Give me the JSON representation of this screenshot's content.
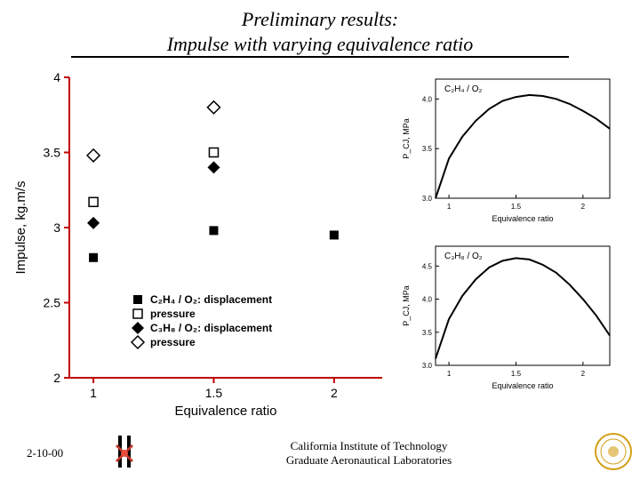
{
  "title_line1": "Preliminary results:",
  "title_line2": "Impulse with varying equivalence ratio",
  "footer": {
    "date": "2-10-00",
    "inst_line1": "California Institute of Technology",
    "inst_line2": "Graduate Aeronautical Laboratories"
  },
  "main_chart": {
    "type": "scatter",
    "xlabel": "Equivalence ratio",
    "ylabel": "Impulse, kg.m/s",
    "xlim": [
      0.9,
      2.2
    ],
    "ylim": [
      2,
      4
    ],
    "xticks": [
      1,
      1.5,
      2
    ],
    "yticks": [
      2,
      2.5,
      3,
      3.5,
      4
    ],
    "axis_color": "#c00000",
    "label_fontsize": 15,
    "tick_fontsize": 14,
    "legend": [
      {
        "marker": "square-filled",
        "label": "C₂H₄ / O₂: displacement"
      },
      {
        "marker": "square-open",
        "label": "                 pressure"
      },
      {
        "marker": "diamond-filled",
        "label": "C₃H₈ / O₂: displacement"
      },
      {
        "marker": "diamond-open",
        "label": "                 pressure"
      }
    ],
    "legend_fontsize": 12,
    "series": [
      {
        "marker": "diamond-open",
        "points": [
          [
            1.0,
            3.48
          ],
          [
            1.5,
            3.8
          ]
        ]
      },
      {
        "marker": "square-open",
        "points": [
          [
            1.0,
            3.17
          ],
          [
            1.5,
            3.5
          ]
        ]
      },
      {
        "marker": "diamond-filled",
        "points": [
          [
            1.0,
            3.03
          ],
          [
            1.5,
            3.4
          ]
        ]
      },
      {
        "marker": "square-filled",
        "points": [
          [
            1.0,
            2.8
          ],
          [
            1.5,
            2.98
          ],
          [
            2.0,
            2.95
          ]
        ]
      }
    ],
    "marker_size": 10,
    "marker_color": "#000000"
  },
  "mini_top": {
    "type": "line",
    "title": "C₂H₄ / O₂",
    "xlabel": "Equivalence ratio",
    "ylabel": "P_CJ, MPa",
    "xlim": [
      0.9,
      2.2
    ],
    "ylim": [
      3.0,
      4.2
    ],
    "xticks": [
      1,
      1.5,
      2
    ],
    "yticks": [
      3.0,
      3.5,
      4.0
    ],
    "line_color": "#000000",
    "axis_fontsize": 8,
    "points": [
      [
        0.9,
        3.0
      ],
      [
        1.0,
        3.4
      ],
      [
        1.1,
        3.62
      ],
      [
        1.2,
        3.78
      ],
      [
        1.3,
        3.9
      ],
      [
        1.4,
        3.98
      ],
      [
        1.5,
        4.02
      ],
      [
        1.6,
        4.04
      ],
      [
        1.7,
        4.03
      ],
      [
        1.8,
        4.0
      ],
      [
        1.9,
        3.95
      ],
      [
        2.0,
        3.88
      ],
      [
        2.1,
        3.8
      ],
      [
        2.2,
        3.7
      ]
    ]
  },
  "mini_bottom": {
    "type": "line",
    "title": "C₃H₈ / O₂",
    "xlabel": "Equivalence ratio",
    "ylabel": "P_CJ, MPa",
    "xlim": [
      0.9,
      2.2
    ],
    "ylim": [
      3.0,
      4.8
    ],
    "xticks": [
      1,
      1.5,
      2
    ],
    "yticks": [
      3.0,
      3.5,
      4.0,
      4.5
    ],
    "line_color": "#000000",
    "axis_fontsize": 8,
    "points": [
      [
        0.9,
        3.1
      ],
      [
        1.0,
        3.7
      ],
      [
        1.1,
        4.05
      ],
      [
        1.2,
        4.3
      ],
      [
        1.3,
        4.48
      ],
      [
        1.4,
        4.58
      ],
      [
        1.5,
        4.62
      ],
      [
        1.6,
        4.6
      ],
      [
        1.7,
        4.52
      ],
      [
        1.8,
        4.4
      ],
      [
        1.9,
        4.22
      ],
      [
        2.0,
        4.0
      ],
      [
        2.1,
        3.75
      ],
      [
        2.2,
        3.45
      ]
    ]
  }
}
